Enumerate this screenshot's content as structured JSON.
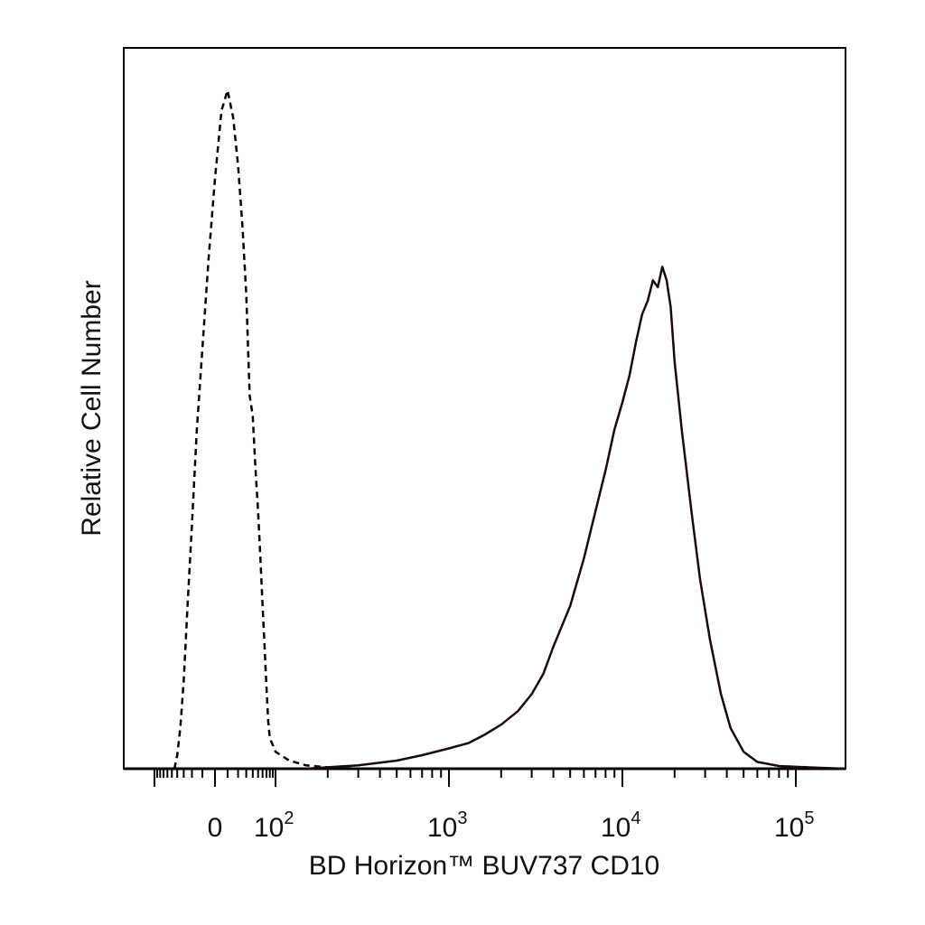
{
  "chart_data": {
    "type": "line",
    "xlabel": "BD Horizon™ BUV737 CD10",
    "ylabel": "Relative Cell Number",
    "x_scale": "biexponential",
    "x_ticks": [
      {
        "value": 0,
        "label": "0"
      },
      {
        "value": 100,
        "base": "10",
        "exp": "2"
      },
      {
        "value": 1000,
        "base": "10",
        "exp": "3"
      },
      {
        "value": 10000,
        "base": "10",
        "exp": "4"
      },
      {
        "value": 100000,
        "base": "10",
        "exp": "5"
      }
    ],
    "ylim": [
      0,
      1
    ],
    "grid": false,
    "legend": "none",
    "series": [
      {
        "style": "dashed",
        "color": "#000000",
        "x": [
          -45,
          -40,
          -35,
          -30,
          -25,
          -20,
          -15,
          -10,
          -5,
          0,
          5,
          10,
          15,
          20,
          25,
          30,
          35,
          40,
          45,
          50,
          55,
          60,
          65,
          70,
          75,
          80,
          90,
          100,
          120,
          150,
          200,
          300,
          1000,
          10000,
          200000
        ],
        "y": [
          0.0,
          0.02,
          0.06,
          0.13,
          0.24,
          0.36,
          0.5,
          0.62,
          0.75,
          0.87,
          0.97,
          1.0,
          0.96,
          0.89,
          0.8,
          0.7,
          0.55,
          0.52,
          0.44,
          0.38,
          0.31,
          0.24,
          0.18,
          0.12,
          0.07,
          0.045,
          0.035,
          0.025,
          0.012,
          0.005,
          0.002,
          0.0,
          0.0,
          0.0,
          0.0
        ]
      },
      {
        "style": "solid",
        "color": "#1a0a0a",
        "x": [
          150,
          300,
          500,
          700,
          1000,
          1300,
          1600,
          2000,
          2500,
          3000,
          3500,
          4000,
          5000,
          6000,
          7000,
          8000,
          9000,
          10000,
          11000,
          12000,
          13000,
          14000,
          15000,
          16000,
          17000,
          18000,
          19000,
          20000,
          22000,
          25000,
          28000,
          32000,
          37000,
          42000,
          50000,
          60000,
          80000,
          120000,
          200000
        ],
        "y": [
          0.0,
          0.005,
          0.012,
          0.02,
          0.03,
          0.038,
          0.05,
          0.065,
          0.085,
          0.11,
          0.14,
          0.18,
          0.24,
          0.31,
          0.38,
          0.44,
          0.5,
          0.54,
          0.58,
          0.63,
          0.67,
          0.69,
          0.72,
          0.71,
          0.74,
          0.72,
          0.68,
          0.6,
          0.5,
          0.38,
          0.28,
          0.19,
          0.11,
          0.06,
          0.025,
          0.01,
          0.004,
          0.002,
          0.0
        ]
      }
    ]
  }
}
